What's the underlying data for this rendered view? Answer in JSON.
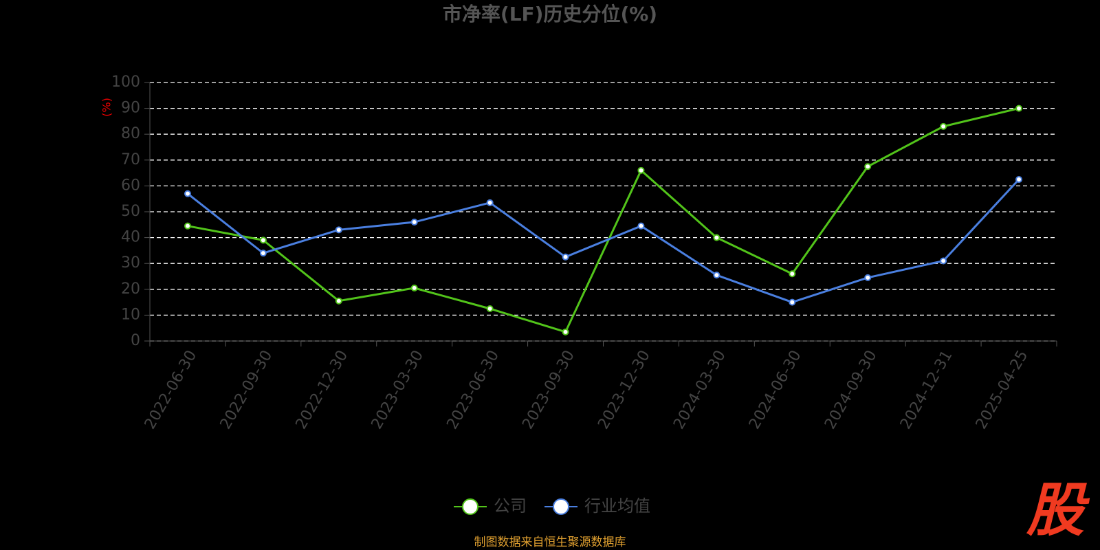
{
  "chart_data": {
    "type": "line",
    "title": "市净率(LF)历史分位(%)",
    "y_label": "(%)",
    "categories": [
      "2022-06-30",
      "2022-09-30",
      "2022-12-30",
      "2023-03-30",
      "2023-06-30",
      "2023-09-30",
      "2023-12-30",
      "2024-03-30",
      "2024-06-30",
      "2024-09-30",
      "2024-12-31",
      "2025-04-25"
    ],
    "series": [
      {
        "name": "公司",
        "color": "#52c41a",
        "values": [
          44.5,
          39,
          15.5,
          20.5,
          12.5,
          3.5,
          66,
          40,
          26,
          67.5,
          83,
          90
        ]
      },
      {
        "name": "行业均值",
        "color": "#4a7fe0",
        "values": [
          57,
          34,
          43,
          46,
          53.5,
          32.5,
          44.5,
          25.5,
          15,
          24.5,
          31,
          62.5
        ]
      }
    ],
    "ylim": [
      0,
      100
    ],
    "yticks": [
      0,
      10,
      20,
      30,
      40,
      50,
      60,
      70,
      80,
      90,
      100
    ],
    "grid": true,
    "legend": "bottom",
    "source": "制图数据来自恒生聚源数据库",
    "logo": "股"
  }
}
